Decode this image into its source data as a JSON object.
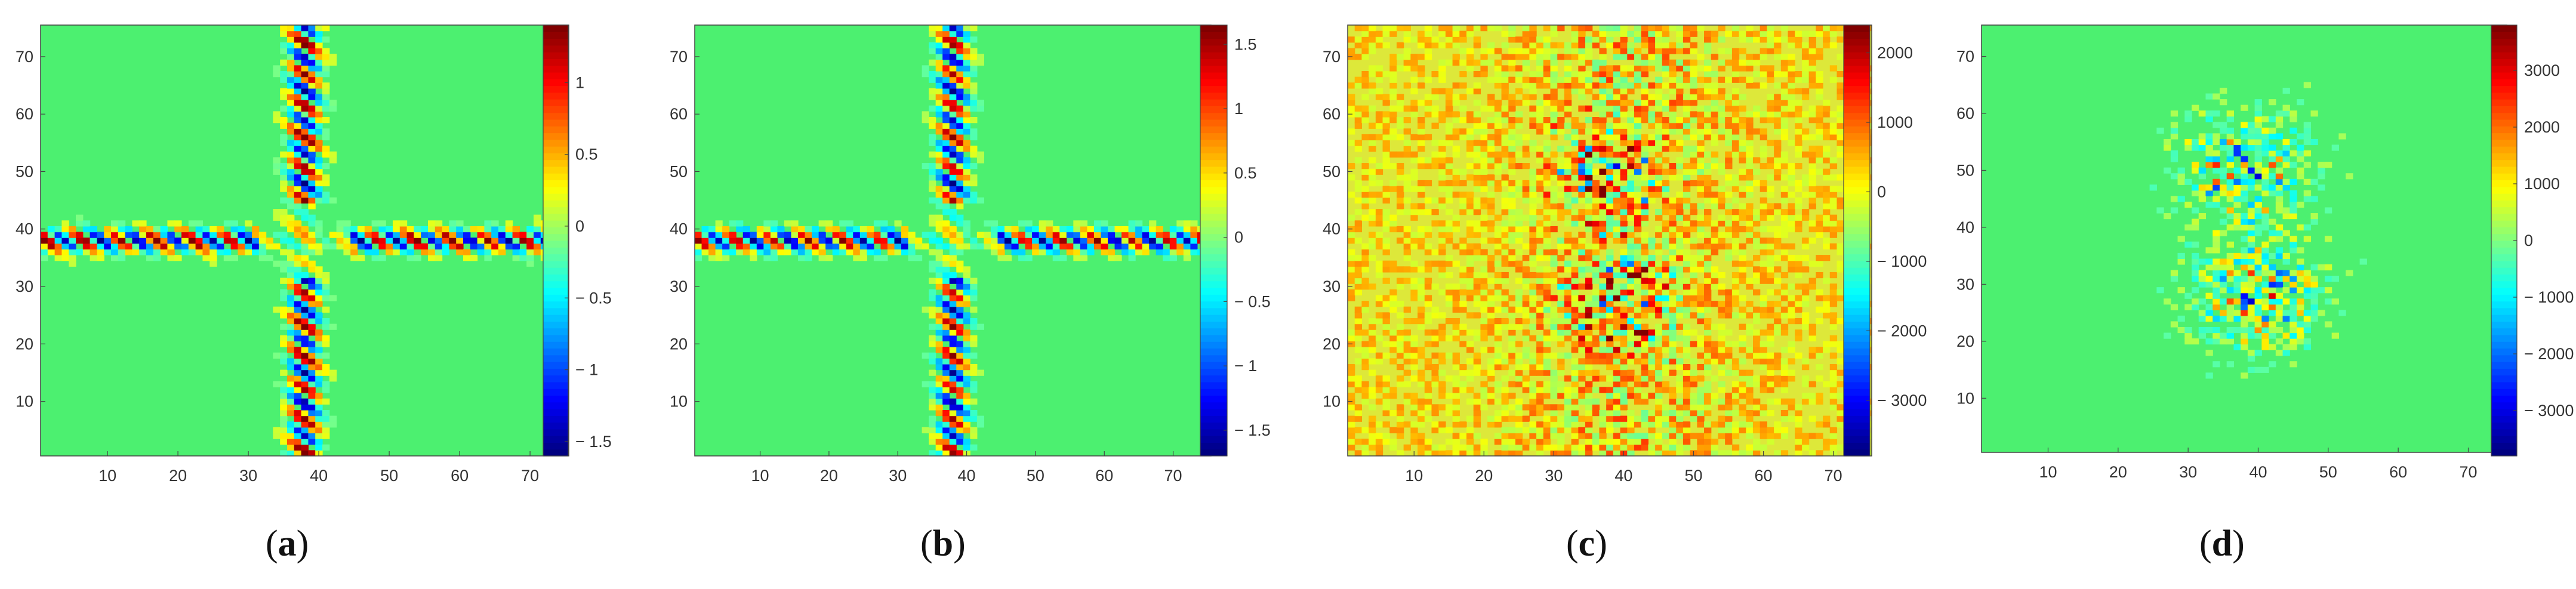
{
  "figure": {
    "panels": [
      {
        "id": "a",
        "caption": "a",
        "paren_open": "(",
        "paren_close": ")"
      },
      {
        "id": "b",
        "caption": "b",
        "paren_open": "(",
        "paren_close": ")"
      },
      {
        "id": "c",
        "caption": "c",
        "paren_open": "(",
        "paren_close": ")"
      },
      {
        "id": "d",
        "caption": "d",
        "paren_open": "(",
        "paren_close": ")"
      }
    ]
  },
  "chart_data": [
    {
      "type": "heatmap",
      "panel": "a",
      "pattern": "cross-interference",
      "xlim": [
        1,
        75
      ],
      "ylim": [
        1,
        75
      ],
      "xticks": [
        "10",
        "20",
        "30",
        "40",
        "50",
        "60",
        "70"
      ],
      "yticks": [
        "10",
        "20",
        "30",
        "40",
        "50",
        "60",
        "70"
      ],
      "colorbar": {
        "min": -1.6,
        "max": 1.4,
        "ticks": [
          "1",
          "0.5",
          "0",
          "− 0.5",
          "− 1",
          "− 1.5"
        ],
        "tick_values": [
          1,
          0.5,
          0,
          -0.5,
          -1,
          -1.5
        ]
      },
      "colormap": "jet",
      "background": "#4cf070",
      "cross_center": [
        38,
        38
      ]
    },
    {
      "type": "heatmap",
      "panel": "b",
      "pattern": "cross-interference",
      "xlim": [
        1,
        75
      ],
      "ylim": [
        1,
        75
      ],
      "xticks": [
        "10",
        "20",
        "30",
        "40",
        "50",
        "60",
        "70"
      ],
      "yticks": [
        "10",
        "20",
        "30",
        "40",
        "50",
        "60",
        "70"
      ],
      "colorbar": {
        "min": -1.7,
        "max": 1.65,
        "ticks": [
          "1.5",
          "1",
          "0.5",
          "0",
          "− 0.5",
          "− 1",
          "− 1.5"
        ],
        "tick_values": [
          1.5,
          1,
          0.5,
          0,
          -0.5,
          -1,
          -1.5
        ]
      },
      "colormap": "jet",
      "background": "#4cf070",
      "cross_center": [
        38,
        38
      ]
    },
    {
      "type": "heatmap",
      "panel": "c",
      "pattern": "noise-two-clusters",
      "xlim": [
        1,
        75
      ],
      "ylim": [
        1,
        75
      ],
      "xticks": [
        "10",
        "20",
        "30",
        "40",
        "50",
        "60",
        "70"
      ],
      "yticks": [
        "10",
        "20",
        "30",
        "40",
        "50",
        "60",
        "70"
      ],
      "colorbar": {
        "min": -3800,
        "max": 2400,
        "ticks": [
          "2000",
          "1000",
          "0",
          "− 1000",
          "− 2000",
          "− 3000"
        ],
        "tick_values": [
          2000,
          1000,
          0,
          -1000,
          -2000,
          -3000
        ]
      },
      "colormap": "jet",
      "background": "#dde83a",
      "clusters": [
        [
          38,
          50
        ],
        [
          40,
          28
        ]
      ]
    },
    {
      "type": "heatmap",
      "panel": "d",
      "pattern": "noise-two-clusters",
      "xlim": [
        1,
        75
      ],
      "ylim": [
        1,
        75
      ],
      "xticks": [
        "10",
        "20",
        "30",
        "40",
        "50",
        "60",
        "70"
      ],
      "yticks": [
        "10",
        "20",
        "30",
        "40",
        "50",
        "60",
        "70"
      ],
      "colorbar": {
        "min": -3800,
        "max": 3800,
        "ticks": [
          "3000",
          "2000",
          "1000",
          "0",
          "− 1000",
          "− 2000",
          "− 3000"
        ],
        "tick_values": [
          3000,
          2000,
          1000,
          0,
          -1000,
          -2000,
          -3000
        ]
      },
      "colormap": "jet",
      "background": "#4cf070",
      "clusters": [
        [
          38,
          50
        ],
        [
          40,
          28
        ]
      ]
    }
  ]
}
